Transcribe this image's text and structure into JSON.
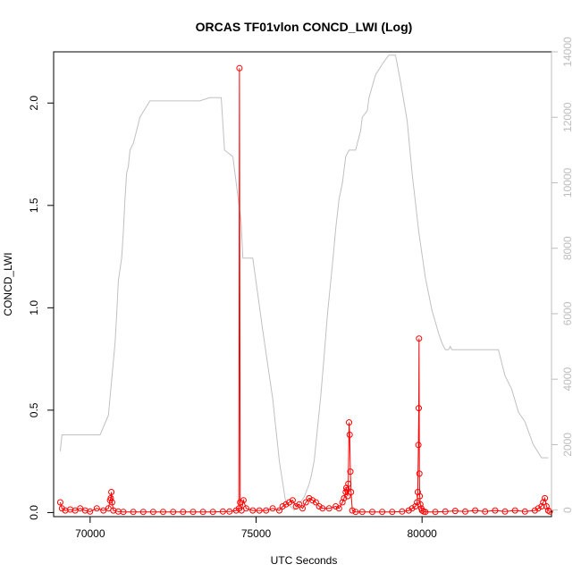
{
  "chart_data": {
    "type": "line",
    "title": "ORCAS TF01vlon CONCD_LWI (Log)",
    "xlabel": "UTC Seconds",
    "ylabel": "CONCD_LWI",
    "xlim": [
      68900,
      83900
    ],
    "ylim": [
      -0.02,
      2.25
    ],
    "y2lim": [
      -200,
      14000
    ],
    "x_ticks": [
      70000,
      75000,
      80000
    ],
    "x_tick_labels": [
      "70000",
      "75000",
      "80000"
    ],
    "y_ticks": [
      0.0,
      0.5,
      1.0,
      1.5,
      2.0
    ],
    "y_tick_labels": [
      "0.0",
      "0.5",
      "1.0",
      "1.5",
      "2.0"
    ],
    "y2_ticks": [
      0,
      2000,
      4000,
      6000,
      8000,
      10000,
      12000,
      14000
    ],
    "y2_tick_labels": [
      "0",
      "2000",
      "4000",
      "6000",
      "8000",
      "10000",
      "12000",
      "14000"
    ],
    "series": [
      {
        "color": "#ff0000",
        "axis": "left",
        "marker": "circle",
        "x": [
          69100,
          69150,
          69250,
          69400,
          69550,
          69700,
          69850,
          70000,
          70200,
          70400,
          70550,
          70600,
          70620,
          70640,
          70660,
          70700,
          70850,
          71000,
          71300,
          71600,
          71900,
          72200,
          72500,
          72800,
          73100,
          73400,
          73700,
          74000,
          74200,
          74400,
          74480,
          74500,
          74520,
          74560,
          74620,
          74700,
          74900,
          75100,
          75300,
          75500,
          75700,
          75800,
          75900,
          76000,
          76100,
          76200,
          76300,
          76400,
          76500,
          76600,
          76700,
          76800,
          76900,
          77000,
          77200,
          77400,
          77500,
          77600,
          77650,
          77700,
          77720,
          77740,
          77760,
          77780,
          77800,
          77820,
          77840,
          77860,
          77900,
          78000,
          78200,
          78500,
          78800,
          79100,
          79400,
          79600,
          79700,
          79800,
          79850,
          79870,
          79890,
          79900,
          79910,
          79920,
          79930,
          79950,
          79980,
          80000,
          80050,
          80100,
          80400,
          80700,
          81000,
          81300,
          81600,
          81900,
          82200,
          82500,
          82800,
          83100,
          83400,
          83500,
          83600,
          83650,
          83700,
          83750,
          83800,
          83850
        ],
        "y": [
          0.05,
          0.02,
          0.01,
          0.015,
          0.01,
          0.02,
          0.01,
          0.005,
          0.02,
          0.01,
          0.02,
          0.06,
          0.07,
          0.1,
          0.05,
          0.01,
          0.005,
          0.003,
          0.003,
          0.003,
          0.003,
          0.003,
          0.003,
          0.003,
          0.003,
          0.003,
          0.003,
          0.005,
          0.005,
          0.01,
          0.02,
          2.17,
          0.05,
          0.01,
          0.06,
          0.02,
          0.01,
          0.01,
          0.01,
          0.02,
          0.01,
          0.03,
          0.04,
          0.05,
          0.06,
          0.03,
          0.04,
          0.02,
          0.05,
          0.07,
          0.06,
          0.05,
          0.03,
          0.02,
          0.02,
          0.03,
          0.02,
          0.05,
          0.07,
          0.1,
          0.12,
          0.11,
          0.08,
          0.14,
          0.44,
          0.38,
          0.2,
          0.1,
          0.01,
          0.003,
          0.003,
          0.003,
          0.003,
          0.003,
          0.005,
          0.01,
          0.02,
          0.03,
          0.05,
          0.1,
          0.33,
          0.51,
          0.85,
          0.19,
          0.08,
          0.04,
          0.02,
          0.01,
          0.005,
          0.003,
          0.003,
          0.005,
          0.008,
          0.005,
          0.01,
          0.005,
          0.01,
          0.005,
          0.01,
          0.005,
          0.01,
          0.02,
          0.03,
          0.05,
          0.07,
          0.03,
          0.01,
          0.005
        ]
      },
      {
        "color": "#c0c0c0",
        "axis": "right",
        "marker": "none",
        "x": [
          69100,
          69150,
          69900,
          70000,
          70300,
          70550,
          70650,
          70750,
          70800,
          70850,
          70950,
          71000,
          71050,
          71100,
          71150,
          71200,
          71300,
          71350,
          71450,
          71500,
          71800,
          72500,
          73300,
          73600,
          73950,
          74050,
          74300,
          74550,
          74600,
          74900,
          75200,
          75500,
          75700,
          75900,
          76050,
          76150,
          76300,
          76450,
          76600,
          76650,
          76750,
          76850,
          76950,
          77050,
          77150,
          77300,
          77400,
          77500,
          77600,
          77700,
          77800,
          77850,
          77900,
          78000,
          78150,
          78200,
          78350,
          78400,
          78600,
          78850,
          79000,
          79100,
          79200,
          79350,
          79550,
          79700,
          79900,
          80100,
          80300,
          80500,
          80600,
          80700,
          80800,
          80850,
          80900,
          81000,
          81500,
          82000,
          82300,
          82500,
          82700,
          82900,
          83100,
          83350,
          83600,
          83800
        ],
        "y": [
          1800,
          2300,
          2300,
          2300,
          2300,
          2900,
          4000,
          5100,
          6000,
          7000,
          7700,
          8500,
          9500,
          10300,
          10500,
          11000,
          11200,
          11400,
          11800,
          12000,
          12500,
          12500,
          12500,
          12600,
          12600,
          11000,
          10800,
          8800,
          7700,
          7700,
          5500,
          3400,
          1500,
          200,
          100,
          0,
          200,
          400,
          800,
          1000,
          1500,
          2500,
          3500,
          4700,
          6000,
          7500,
          8600,
          9500,
          10000,
          10800,
          11000,
          11000,
          11000,
          11000,
          11600,
          12000,
          12200,
          12600,
          13300,
          13700,
          13900,
          13900,
          13900,
          13100,
          11900,
          10300,
          8500,
          7100,
          6100,
          5400,
          5100,
          4900,
          4900,
          5000,
          4900,
          4900,
          4900,
          4900,
          4900,
          4100,
          3700,
          3000,
          2700,
          2000,
          1600,
          1600
        ]
      }
    ]
  }
}
